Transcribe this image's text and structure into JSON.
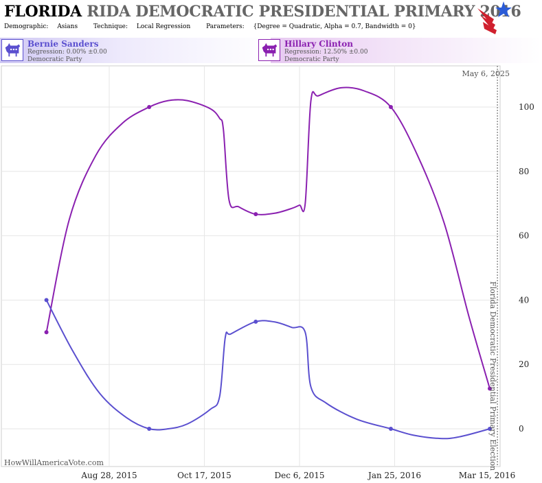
{
  "header": {
    "title_bold": "FLORIDA",
    "title_rest": "RIDA DEMOCRATIC PRESIDENTIAL PRIMARY 2016",
    "demographic_label": "Demographic:",
    "demographic": "Asians",
    "technique_label": "Technique:",
    "technique": "Local Regression",
    "parameters_label": "Parameters:",
    "parameters": "{Degree = Quadratic, Alpha = 0.7, Bandwidth = 0}"
  },
  "legend": [
    {
      "name": "Bernie Sanders",
      "regression": "Regression: 0.00% ±0.00",
      "party": "Democratic Party",
      "color": "#5a4fcf"
    },
    {
      "name": "Hillary Clinton",
      "regression": "Regression: 12.50% ±0.00",
      "party": "Democratic Party",
      "color": "#8a20b0"
    }
  ],
  "watermark": "HowWillAmericaVote.com",
  "date_label": "May 6, 2025",
  "election_label": "Florida Democratic Presidential Primary Election",
  "chart_data": {
    "type": "line",
    "x_tick_labels": [
      "Aug 28, 2015",
      "Oct 17, 2015",
      "Dec 6, 2015",
      "Jan 25, 2016",
      "Mar 15, 2016"
    ],
    "ylim": [
      -10,
      110
    ],
    "y_ticks": [
      0,
      20,
      40,
      60,
      80,
      100
    ],
    "grid": true,
    "y_axis_side": "right",
    "series": [
      {
        "name": "Hillary Clinton",
        "color": "#8a20b0",
        "points": [
          {
            "date": "2015-07-26",
            "value": 30
          },
          {
            "date": "2015-09-18",
            "value": 100
          },
          {
            "date": "2015-11-13",
            "value": 66.7
          },
          {
            "date": "2016-01-23",
            "value": 100
          },
          {
            "date": "2016-03-15",
            "value": 12.5
          }
        ],
        "curve": [
          {
            "date": "2015-07-26",
            "value": 30
          },
          {
            "date": "2015-08-07",
            "value": 65
          },
          {
            "date": "2015-08-21",
            "value": 85
          },
          {
            "date": "2015-09-04",
            "value": 95
          },
          {
            "date": "2015-09-18",
            "value": 100
          },
          {
            "date": "2015-09-28",
            "value": 102
          },
          {
            "date": "2015-10-08",
            "value": 102
          },
          {
            "date": "2015-10-20",
            "value": 99.5
          },
          {
            "date": "2015-10-25",
            "value": 96.5
          },
          {
            "date": "2015-10-27",
            "value": 93
          },
          {
            "date": "2015-10-30",
            "value": 71
          },
          {
            "date": "2015-11-04",
            "value": 69
          },
          {
            "date": "2015-11-13",
            "value": 66.7
          },
          {
            "date": "2015-11-23",
            "value": 67
          },
          {
            "date": "2015-12-02",
            "value": 68.5
          },
          {
            "date": "2015-12-06",
            "value": 69.5
          },
          {
            "date": "2015-12-09",
            "value": 70
          },
          {
            "date": "2015-12-12",
            "value": 102
          },
          {
            "date": "2015-12-16",
            "value": 103.5
          },
          {
            "date": "2015-12-28",
            "value": 106
          },
          {
            "date": "2016-01-09",
            "value": 105
          },
          {
            "date": "2016-01-23",
            "value": 100
          },
          {
            "date": "2016-02-06",
            "value": 85
          },
          {
            "date": "2016-02-20",
            "value": 64
          },
          {
            "date": "2016-03-04",
            "value": 35
          },
          {
            "date": "2016-03-15",
            "value": 12.5
          }
        ]
      },
      {
        "name": "Bernie Sanders",
        "color": "#5a4fcf",
        "points": [
          {
            "date": "2015-07-26",
            "value": 40
          },
          {
            "date": "2015-09-18",
            "value": 0
          },
          {
            "date": "2015-11-13",
            "value": 33.3
          },
          {
            "date": "2016-01-23",
            "value": 0
          },
          {
            "date": "2016-03-15",
            "value": 0
          }
        ],
        "curve": [
          {
            "date": "2015-07-26",
            "value": 40
          },
          {
            "date": "2015-08-09",
            "value": 24
          },
          {
            "date": "2015-08-23",
            "value": 11
          },
          {
            "date": "2015-09-06",
            "value": 3.5
          },
          {
            "date": "2015-09-18",
            "value": 0
          },
          {
            "date": "2015-09-28",
            "value": 0
          },
          {
            "date": "2015-10-08",
            "value": 1.5
          },
          {
            "date": "2015-10-20",
            "value": 6
          },
          {
            "date": "2015-10-25",
            "value": 10
          },
          {
            "date": "2015-10-28",
            "value": 28.5
          },
          {
            "date": "2015-10-31",
            "value": 29.5
          },
          {
            "date": "2015-11-13",
            "value": 33.3
          },
          {
            "date": "2015-11-23",
            "value": 33.2
          },
          {
            "date": "2015-12-02",
            "value": 31.5
          },
          {
            "date": "2015-12-09",
            "value": 30
          },
          {
            "date": "2015-12-12",
            "value": 13
          },
          {
            "date": "2015-12-20",
            "value": 8
          },
          {
            "date": "2016-01-05",
            "value": 3
          },
          {
            "date": "2016-01-23",
            "value": 0
          },
          {
            "date": "2016-02-04",
            "value": -2
          },
          {
            "date": "2016-02-18",
            "value": -3
          },
          {
            "date": "2016-02-28",
            "value": -2.5
          },
          {
            "date": "2016-03-15",
            "value": 0
          }
        ]
      }
    ]
  }
}
